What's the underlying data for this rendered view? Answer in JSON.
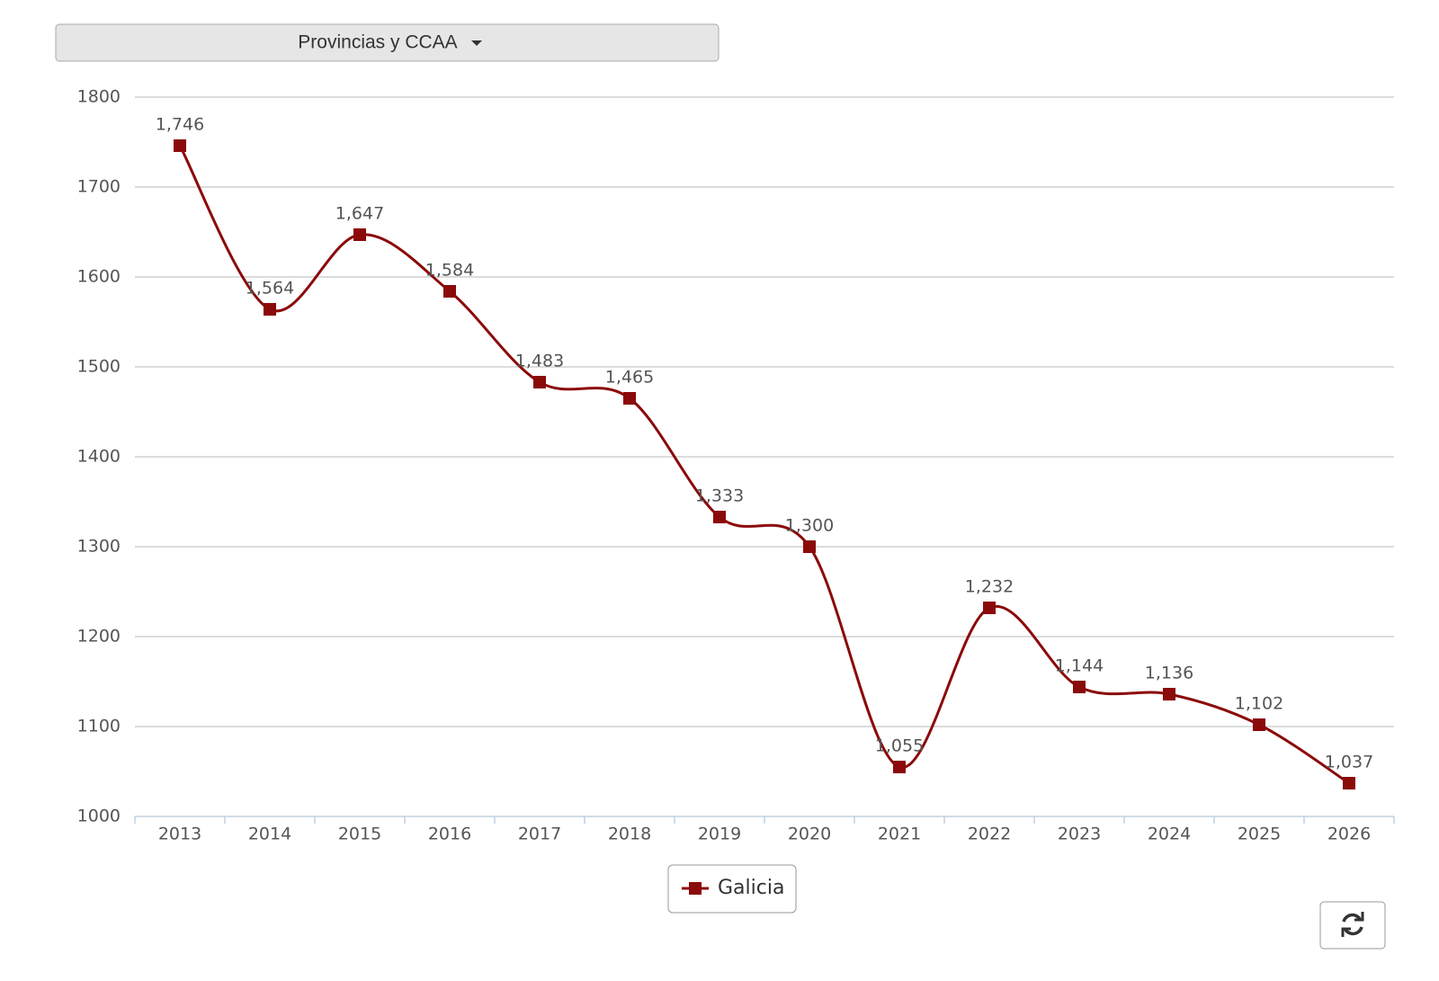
{
  "dropdown": {
    "label": "Provincias y CCAA"
  },
  "chart_data": {
    "type": "line",
    "categories": [
      "2013",
      "2014",
      "2015",
      "2016",
      "2017",
      "2018",
      "2019",
      "2020",
      "2021",
      "2022",
      "2023",
      "2024",
      "2025",
      "2026"
    ],
    "series": [
      {
        "name": "Galicia",
        "color": "#8b0a0a",
        "values": [
          1746,
          1564,
          1647,
          1584,
          1483,
          1465,
          1333,
          1300,
          1055,
          1232,
          1144,
          1136,
          1102,
          1037
        ],
        "value_labels": [
          "1,746",
          "1,564",
          "1,647",
          "1,584",
          "1,483",
          "1,465",
          "1,333",
          "1,300",
          "1,055",
          "1,232",
          "1,144",
          "1,136",
          "1,102",
          "1,037"
        ]
      }
    ],
    "ylim": [
      1000,
      1800
    ],
    "yticks": [
      1000,
      1100,
      1200,
      1300,
      1400,
      1500,
      1600,
      1700,
      1800
    ],
    "grid": true,
    "smooth": true,
    "legend": "bottom"
  }
}
